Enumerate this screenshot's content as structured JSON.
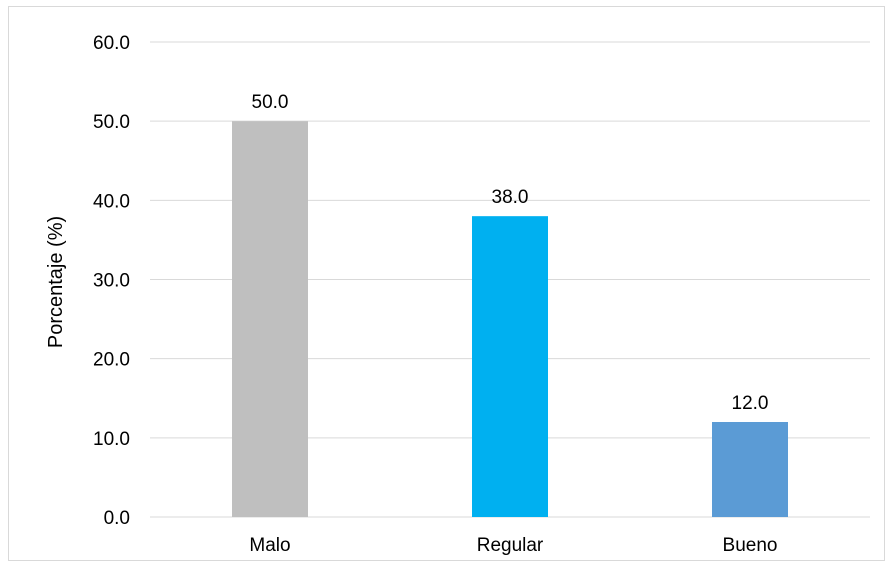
{
  "chart_data": {
    "type": "bar",
    "categories": [
      "Malo",
      "Regular",
      "Bueno"
    ],
    "values": [
      50.0,
      38.0,
      12.0
    ],
    "data_labels": [
      "50.0",
      "38.0",
      "12.0"
    ],
    "bar_colors": [
      "#bfbfbf",
      "#00b0f0",
      "#5b9bd5"
    ],
    "title": "",
    "xlabel": "",
    "ylabel": "Porcentaje (%)",
    "ylim": [
      0,
      60
    ],
    "ytick_values": [
      0,
      10,
      20,
      30,
      40,
      50,
      60
    ],
    "ytick_labels": [
      "0.0",
      "10.0",
      "20.0",
      "30.0",
      "40.0",
      "50.0",
      "60.0"
    ],
    "grid": true,
    "gridline_color": "#d9d9d9",
    "legend": "none"
  }
}
